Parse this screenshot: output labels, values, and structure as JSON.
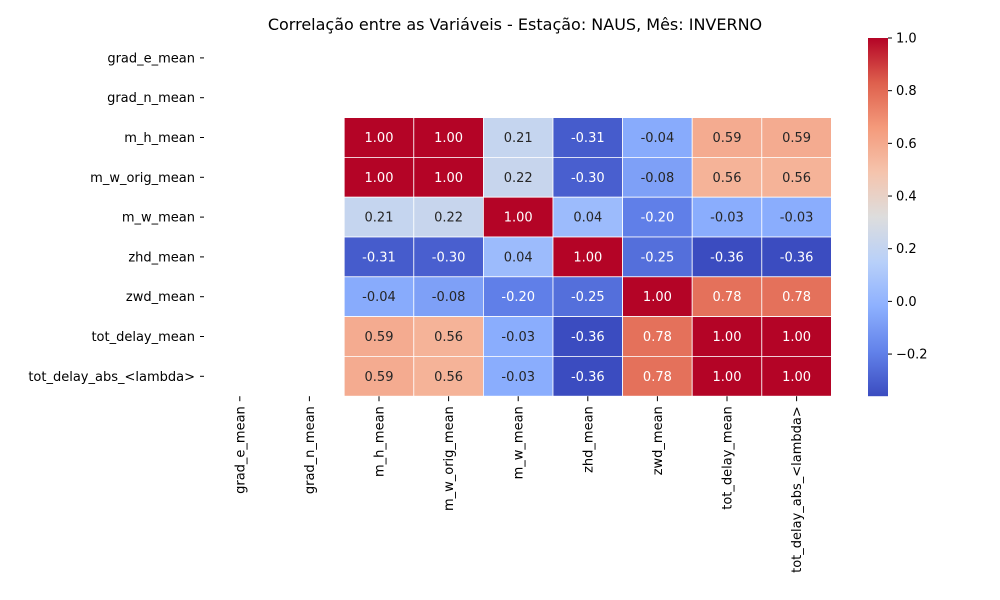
{
  "chart_data": {
    "type": "heatmap",
    "title": "Correlação entre as Variáveis - Estação: NAUS, Mês: INVERNO",
    "variables": [
      "grad_e_mean",
      "grad_n_mean",
      "m_h_mean",
      "m_w_orig_mean",
      "m_w_mean",
      "zhd_mean",
      "zwd_mean",
      "tot_delay_mean",
      "tot_delay_abs_<lambda>"
    ],
    "matrix": [
      [
        null,
        null,
        null,
        null,
        null,
        null,
        null,
        null,
        null
      ],
      [
        null,
        null,
        null,
        null,
        null,
        null,
        null,
        null,
        null
      ],
      [
        null,
        null,
        1.0,
        1.0,
        0.21,
        -0.31,
        -0.04,
        0.59,
        0.59
      ],
      [
        null,
        null,
        1.0,
        1.0,
        0.22,
        -0.3,
        -0.08,
        0.56,
        0.56
      ],
      [
        null,
        null,
        0.21,
        0.22,
        1.0,
        0.04,
        -0.2,
        -0.03,
        -0.03
      ],
      [
        null,
        null,
        -0.31,
        -0.3,
        0.04,
        1.0,
        -0.25,
        -0.36,
        -0.36
      ],
      [
        null,
        null,
        -0.04,
        -0.08,
        -0.2,
        -0.25,
        1.0,
        0.78,
        0.78
      ],
      [
        null,
        null,
        0.59,
        0.56,
        -0.03,
        -0.36,
        0.78,
        1.0,
        1.0
      ],
      [
        null,
        null,
        0.59,
        0.56,
        -0.03,
        -0.36,
        0.78,
        1.0,
        1.0
      ]
    ],
    "value_format": "2 decimals",
    "colormap": "coolwarm",
    "color_range": [
      -0.36,
      1.0
    ],
    "colorbar": {
      "ticks": [
        1.0,
        0.8,
        0.6,
        0.4,
        0.2,
        0.0,
        -0.2
      ],
      "tick_labels": [
        "1.0",
        "0.8",
        "0.6",
        "0.4",
        "0.2",
        "0.0",
        "−0.2"
      ]
    },
    "grid": false
  }
}
